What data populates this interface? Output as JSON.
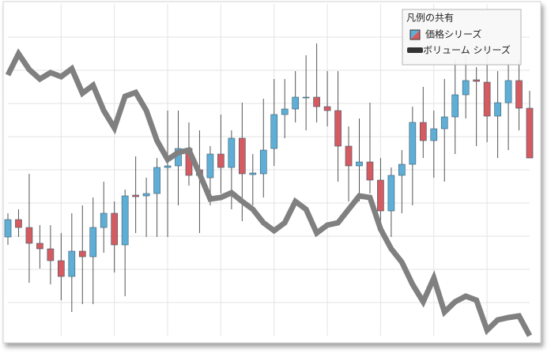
{
  "chart_data": {
    "type": "candlestick",
    "legend_title": "凡例の共有",
    "legend": "top-right",
    "grid": true,
    "ylim": [
      0,
      420
    ],
    "y2lim": [
      0,
      420
    ],
    "series": [
      {
        "name": "価格シリーズ",
        "type": "candlestick",
        "up_color": "#5eaed6",
        "down_color": "#d45b60",
        "open": [
          125,
          147,
          137,
          117,
          110,
          95,
          75,
          107,
          100,
          137,
          155,
          115,
          178,
          177,
          180,
          213,
          215,
          237,
          210,
          200,
          230,
          213,
          250,
          204,
          205,
          237,
          280,
          287,
          301,
          302,
          290,
          285,
          240,
          215,
          220,
          197,
          158,
          203,
          217,
          270,
          247,
          262,
          277,
          305,
          324,
          321,
          278,
          295,
          323,
          288
        ],
        "high": [
          155,
          160,
          205,
          140,
          140,
          130,
          155,
          165,
          175,
          195,
          170,
          185,
          227,
          200,
          225,
          285,
          285,
          270,
          260,
          240,
          280,
          260,
          295,
          230,
          300,
          325,
          325,
          335,
          355,
          370,
          335,
          335,
          265,
          275,
          295,
          225,
          213,
          235,
          290,
          315,
          285,
          325,
          350,
          355,
          340,
          365,
          335,
          345,
          350,
          310
        ],
        "low": [
          115,
          125,
          67,
          85,
          65,
          45,
          30,
          40,
          40,
          105,
          80,
          50,
          130,
          125,
          125,
          125,
          165,
          190,
          130,
          165,
          180,
          160,
          145,
          165,
          175,
          215,
          250,
          270,
          260,
          270,
          265,
          195,
          170,
          170,
          180,
          145,
          125,
          155,
          165,
          225,
          200,
          195,
          230,
          275,
          240,
          245,
          225,
          235,
          260,
          225
        ],
        "close": [
          147,
          137,
          117,
          110,
          95,
          75,
          107,
          100,
          137,
          155,
          115,
          177,
          176,
          180,
          213,
          215,
          237,
          203,
          203,
          230,
          213,
          250,
          205,
          206,
          235,
          280,
          287,
          302,
          302,
          290,
          285,
          240,
          215,
          220,
          197,
          158,
          203,
          217,
          270,
          247,
          262,
          277,
          305,
          323,
          322,
          278,
          295,
          323,
          288,
          225
        ]
      },
      {
        "name": "ボリューム シリーズ",
        "type": "line",
        "axis": "y2",
        "color": "#808080",
        "values": [
          330,
          357,
          337,
          325,
          333,
          328,
          338,
          307,
          317,
          285,
          263,
          303,
          308,
          285,
          247,
          223,
          232,
          235,
          205,
          173,
          175,
          181,
          170,
          160,
          143,
          133,
          143,
          170,
          160,
          130,
          140,
          143,
          160,
          177,
          175,
          135,
          110,
          93,
          65,
          43,
          73,
          30,
          43,
          50,
          45,
          7,
          20,
          23,
          25,
          0
        ]
      }
    ]
  }
}
